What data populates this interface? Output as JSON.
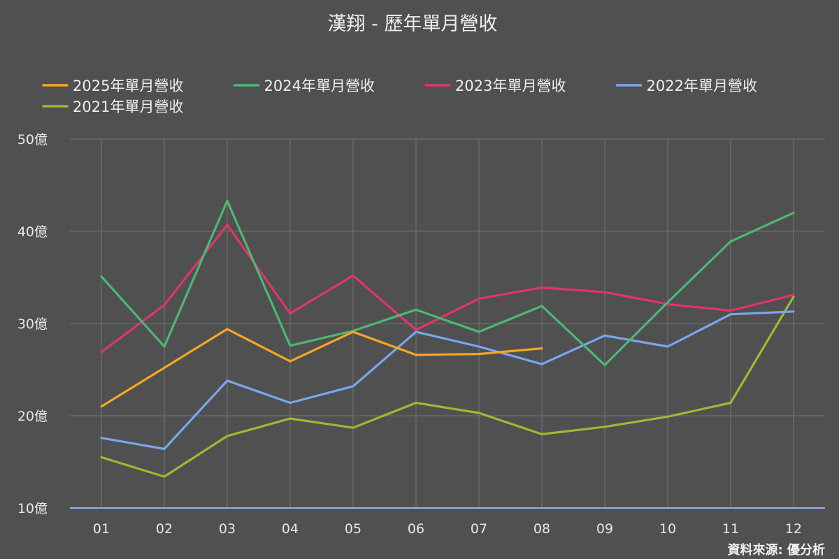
{
  "chart_data": {
    "type": "line",
    "title": "漢翔 - 歷年單月營收",
    "categories": [
      "01",
      "02",
      "03",
      "04",
      "05",
      "06",
      "07",
      "08",
      "09",
      "10",
      "11",
      "12"
    ],
    "ylim": [
      10,
      50
    ],
    "yticks": [
      10,
      20,
      30,
      40,
      50
    ],
    "ytick_labels": [
      "10億",
      "20億",
      "30億",
      "40億",
      "50億"
    ],
    "grid": true,
    "legend_position": "top-left",
    "source": "資料來源: 優分析",
    "series": [
      {
        "name": "2025年單月營收",
        "color": "#f5a623",
        "values": [
          21.0,
          25.2,
          29.4,
          25.9,
          29.1,
          26.6,
          26.7,
          27.3,
          null,
          null,
          null,
          null
        ]
      },
      {
        "name": "2024年單月營收",
        "color": "#4cb874",
        "values": [
          35.1,
          27.5,
          43.3,
          27.6,
          29.2,
          31.5,
          29.1,
          31.9,
          25.5,
          32.3,
          38.9,
          42.0
        ]
      },
      {
        "name": "2023年單月營收",
        "color": "#e0356b",
        "values": [
          26.9,
          32.0,
          40.7,
          31.1,
          35.2,
          29.3,
          32.7,
          33.9,
          33.4,
          32.1,
          31.4,
          33.1
        ]
      },
      {
        "name": "2022年單月營收",
        "color": "#7aa6f0",
        "values": [
          17.6,
          16.4,
          23.8,
          21.4,
          23.2,
          29.1,
          27.5,
          25.6,
          28.7,
          27.5,
          31.0,
          31.3
        ]
      },
      {
        "name": "2021年單月營收",
        "color": "#99bb33",
        "values": [
          15.5,
          13.4,
          17.8,
          19.7,
          18.7,
          21.4,
          20.3,
          18.0,
          18.8,
          19.9,
          21.4,
          32.9
        ]
      }
    ]
  }
}
